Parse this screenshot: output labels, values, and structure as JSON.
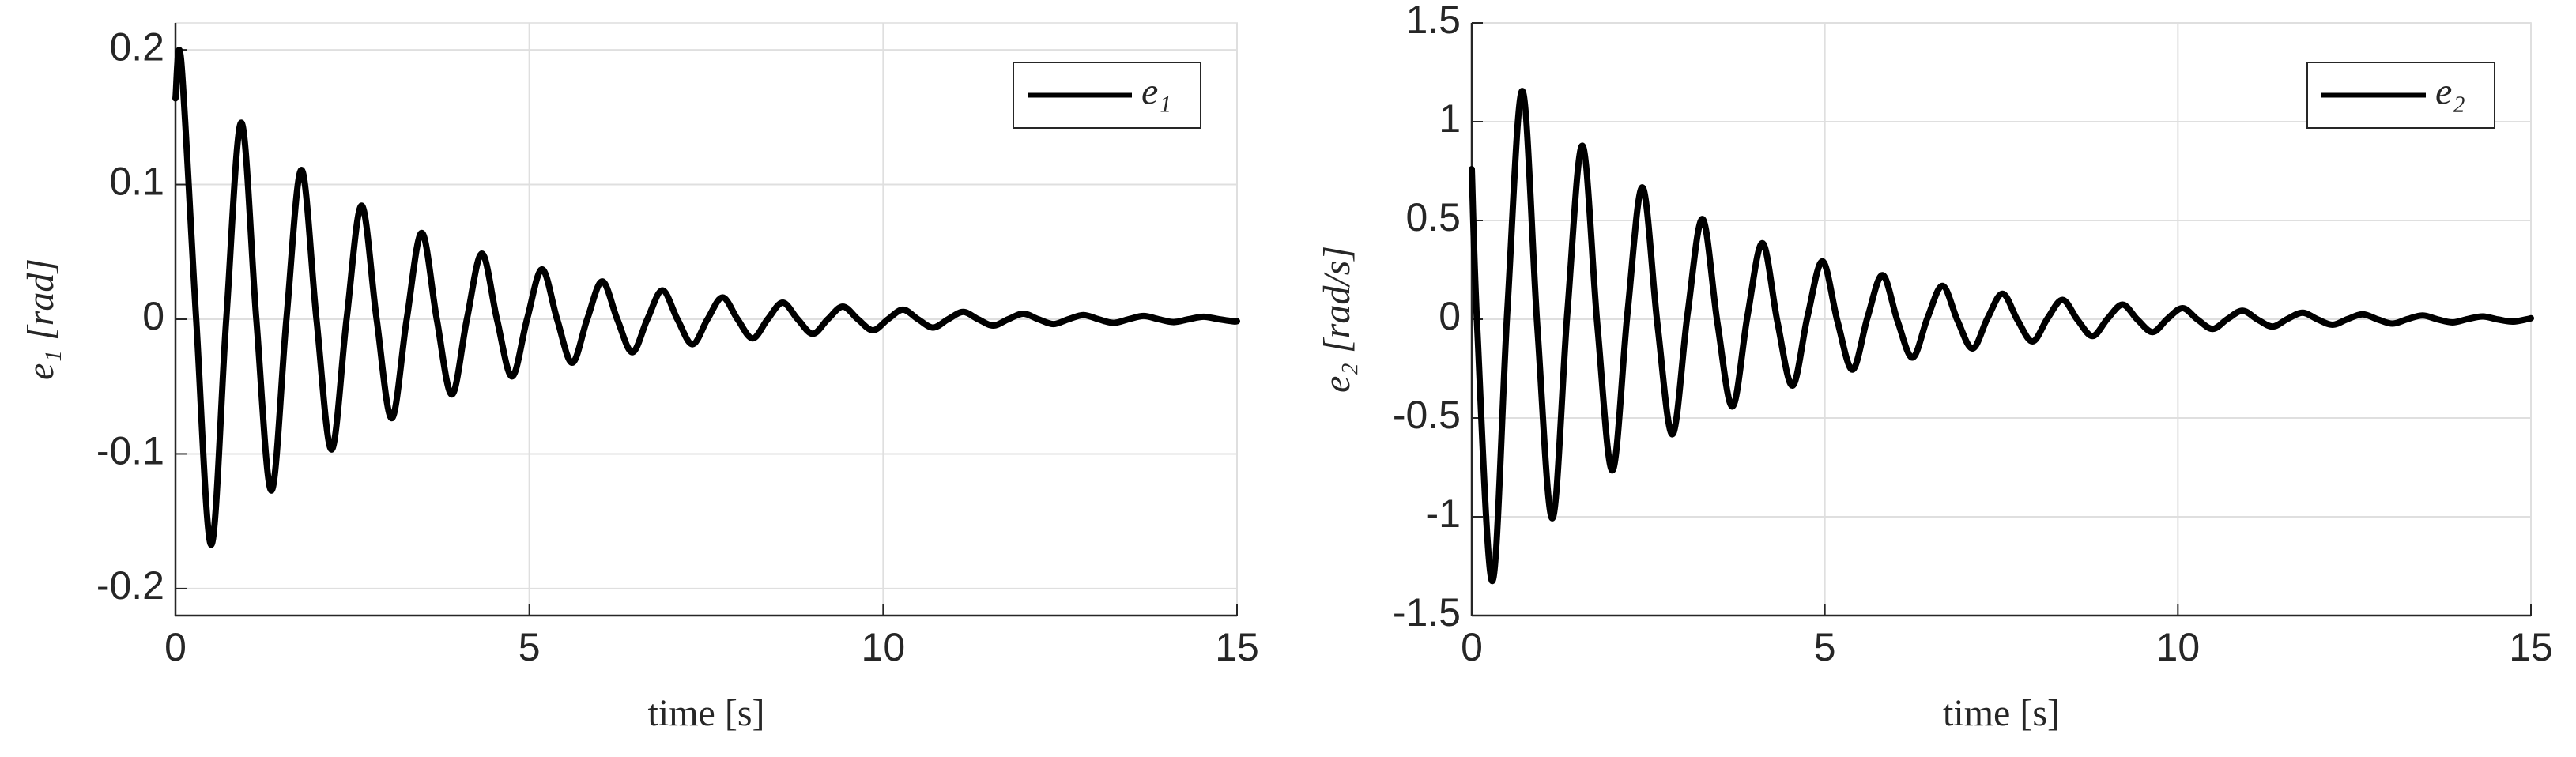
{
  "chart_data": [
    {
      "type": "line",
      "ylabel": "e₁ [rad]",
      "xlabel": "time [s]",
      "xlim": [
        0,
        15
      ],
      "ylim": [
        -0.22,
        0.22
      ],
      "xticks": [
        0,
        5,
        10,
        15
      ],
      "yticks": [
        -0.2,
        -0.1,
        0,
        0.1,
        0.2
      ],
      "grid": true,
      "legend": "upper right",
      "x": [
        0,
        0.08,
        0.2925,
        0.505,
        0.7175,
        0.93,
        1.1425,
        1.355,
        1.5675,
        1.78,
        1.9925,
        2.205,
        2.4175,
        2.63,
        2.8425,
        3.055,
        3.2675,
        3.48,
        3.6925,
        3.905,
        4.1175,
        4.33,
        4.5425,
        4.755,
        4.9675,
        5.18,
        5.3925,
        5.605,
        5.8175,
        6.03,
        6.2425,
        6.455,
        6.6675,
        6.88,
        7.0925,
        7.305,
        7.5175,
        7.73,
        7.9425,
        8.155,
        8.3675,
        8.58,
        8.7925,
        9.005,
        9.2175,
        9.43,
        9.6425,
        9.855,
        10.0675,
        10.28,
        10.4925,
        10.705,
        10.9175,
        11.13,
        11.3425,
        11.555,
        11.7675,
        11.98,
        12.1925,
        12.405,
        12.6175,
        12.83,
        13.0425,
        13.255,
        13.4675,
        13.68,
        13.8925,
        14.105,
        14.3175,
        14.53,
        14.7425,
        14.955,
        15
      ],
      "series": [
        {
          "name": "e₁",
          "color": "#000000",
          "values": [
            0.164,
            0.192,
            0,
            -0.1674,
            0,
            0.1459,
            0,
            -0.1272,
            0,
            0.1109,
            0,
            -0.0967,
            0,
            0.0843,
            0,
            -0.0735,
            0,
            0.0641,
            0,
            -0.0559,
            0,
            0.0487,
            0,
            -0.0425,
            0,
            0.037,
            0,
            -0.0323,
            0,
            0.0281,
            0,
            -0.0245,
            0,
            0.0214,
            0,
            -0.0186,
            0,
            0.0162,
            0,
            -0.0142,
            0,
            0.0123,
            0,
            -0.0108,
            0,
            0.0094,
            0,
            -0.0082,
            0,
            0.0071,
            0,
            -0.0062,
            0,
            0.0054,
            0,
            -0.0047,
            0,
            0.0041,
            0,
            -0.0036,
            0,
            0.0031,
            0,
            -0.0027,
            0,
            0.0024,
            0,
            -0.0021,
            0,
            0.0018,
            0,
            -0.0016,
            -0.0015
          ]
        }
      ]
    },
    {
      "type": "line",
      "ylabel": "e₂ [rad/s]",
      "xlabel": "time [s]",
      "xlim": [
        0,
        15
      ],
      "ylim": [
        -1.5,
        1.5
      ],
      "xticks": [
        0,
        5,
        10,
        15
      ],
      "yticks": [
        -1.5,
        -1,
        -0.5,
        0,
        0.5,
        1,
        1.5
      ],
      "grid": true,
      "legend": "upper right",
      "x": [
        0,
        0.08,
        0.2925,
        0.505,
        0.7175,
        0.93,
        1.1425,
        1.355,
        1.5675,
        1.78,
        1.9925,
        2.205,
        2.4175,
        2.63,
        2.8425,
        3.055,
        3.2675,
        3.48,
        3.6925,
        3.905,
        4.1175,
        4.33,
        4.5425,
        4.755,
        4.9675,
        5.18,
        5.3925,
        5.605,
        5.8175,
        6.03,
        6.2425,
        6.455,
        6.6675,
        6.88,
        7.0925,
        7.305,
        7.5175,
        7.73,
        7.9425,
        8.155,
        8.3675,
        8.58,
        8.7925,
        9.005,
        9.2175,
        9.43,
        9.6425,
        9.855,
        10.0675,
        10.28,
        10.4925,
        10.705,
        10.9175,
        11.13,
        11.3425,
        11.555,
        11.7675,
        11.98,
        12.1925,
        12.405,
        12.6175,
        12.83,
        13.0425,
        13.255,
        13.4675,
        13.68,
        13.8925,
        14.105,
        14.3175,
        14.53,
        14.7425,
        14.955,
        15
      ],
      "series": [
        {
          "name": "e₂",
          "color": "#000000",
          "values": [
            0.76,
            -0.062,
            -1.325,
            0.054,
            1.155,
            -0.047,
            -1.007,
            0.041,
            0.878,
            -0.036,
            -0.765,
            0.031,
            0.667,
            -0.027,
            -0.582,
            0.024,
            0.507,
            -0.021,
            -0.442,
            0.018,
            0.385,
            -0.016,
            -0.336,
            0.014,
            0.293,
            -0.012,
            -0.255,
            0.01,
            0.223,
            -0.009,
            -0.194,
            0.008,
            0.169,
            -0.007,
            -0.148,
            0.006,
            0.129,
            -0.005,
            -0.112,
            0.005,
            0.098,
            -0.004,
            -0.085,
            0.003,
            0.074,
            -0.003,
            -0.065,
            0.003,
            0.056,
            -0.002,
            -0.049,
            0.002,
            0.043,
            -0.002,
            -0.037,
            0.002,
            0.033,
            -0.001,
            -0.028,
            0.001,
            0.025,
            -0.001,
            -0.022,
            0.001,
            0.019,
            -0.001,
            -0.016,
            0.001,
            0.014,
            -0.001,
            -0.012,
            0.001,
            0.005
          ]
        }
      ]
    }
  ]
}
